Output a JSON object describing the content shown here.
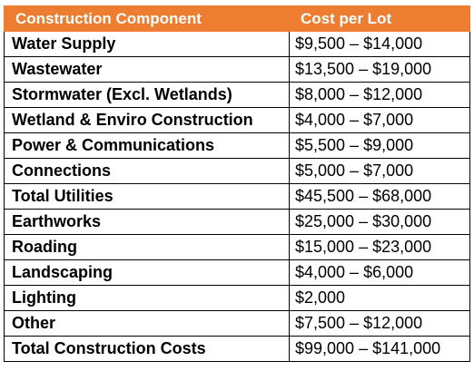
{
  "table": {
    "headers": [
      "Construction Component",
      "Cost per Lot"
    ],
    "header_color": "#ed7d31",
    "rows": [
      {
        "component": "Water Supply",
        "cost": "$9,500 – $14,000"
      },
      {
        "component": "Wastewater",
        "cost": "$13,500 – $19,000"
      },
      {
        "component": "Stormwater (Excl. Wetlands)",
        "cost": "$8,000 – $12,000"
      },
      {
        "component": "Wetland & Enviro Construction",
        "cost": "$4,000 – $7,000"
      },
      {
        "component": "Power & Communications",
        "cost": "$5,500 – $9,000"
      },
      {
        "component": "Connections",
        "cost": "$5,000 – $7,000"
      },
      {
        "component": "Total Utilities",
        "cost": "$45,500 – $68,000"
      },
      {
        "component": "Earthworks",
        "cost": "$25,000 – $30,000"
      },
      {
        "component": "Roading",
        "cost": "$15,000 – $23,000"
      },
      {
        "component": "Landscaping",
        "cost": "$4,000 – $6,000"
      },
      {
        "component": "Lighting",
        "cost": "$2,000"
      },
      {
        "component": "Other",
        "cost": "$7,500 – $12,000"
      },
      {
        "component": "Total Construction Costs",
        "cost": "$99,000 – $141,000"
      }
    ]
  }
}
